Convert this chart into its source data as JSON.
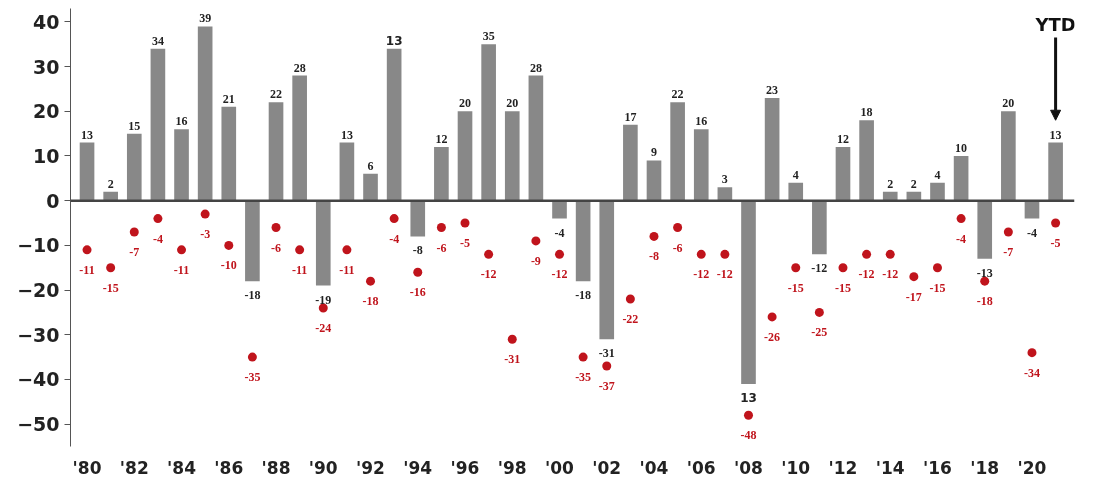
{
  "chart_data": {
    "type": "bar",
    "x": [
      1980,
      1981,
      1982,
      1983,
      1984,
      1985,
      1986,
      1987,
      1988,
      1989,
      1990,
      1991,
      1992,
      1993,
      1994,
      1995,
      1996,
      1997,
      1998,
      1999,
      2000,
      2001,
      2002,
      2003,
      2004,
      2005,
      2006,
      2007,
      2008,
      2009,
      2010,
      2011,
      2012,
      2013,
      2014,
      2015,
      2016,
      2017,
      2018,
      2019,
      2020,
      2021
    ],
    "series": [
      {
        "color": "#888888",
        "values": [
          13,
          2,
          15,
          34,
          16,
          39,
          21,
          -18,
          22,
          28,
          -19,
          13,
          6,
          34,
          -8,
          12,
          20,
          35,
          20,
          28,
          -4,
          -18,
          -31,
          17,
          9,
          22,
          16,
          3,
          -41,
          23,
          4,
          -12,
          12,
          18,
          2,
          2,
          4,
          10,
          -13,
          20,
          -4,
          13
        ],
        "value_labels": [
          "13",
          "2",
          "15",
          "34",
          "16",
          "39",
          "21",
          "-18",
          "22",
          "28",
          "-19",
          "13",
          "6",
          null,
          "-8",
          "12",
          "20",
          "35",
          "20",
          "28",
          "-4",
          "-18",
          "-31",
          "17",
          "9",
          "22",
          "16",
          "3",
          null,
          "23",
          "4",
          "-12",
          "12",
          "18",
          "2",
          "2",
          "4",
          "10",
          "-13",
          "20",
          "-4",
          "13"
        ]
      },
      {
        "type": "scatter",
        "color": "#c0141c",
        "marker": "circle",
        "data_labels": true,
        "values": [
          -11,
          -15,
          -7,
          -4,
          -11,
          -3,
          -10,
          -35,
          -6,
          -11,
          -24,
          -11,
          -18,
          -4,
          -16,
          -6,
          -5,
          -12,
          -31,
          -9,
          -12,
          -35,
          -37,
          -22,
          -8,
          -6,
          -12,
          -12,
          -48,
          -26,
          -15,
          -25,
          -15,
          -12,
          -12,
          -17,
          -15,
          -4,
          -18,
          -7,
          -34,
          -5
        ]
      }
    ],
    "xlim": [
      1979.3,
      2021.8
    ],
    "xticks": [
      {
        "value": 1980,
        "label": "'80"
      },
      {
        "value": 1982,
        "label": "'82"
      },
      {
        "value": 1984,
        "label": "'84"
      },
      {
        "value": 1986,
        "label": "'86"
      },
      {
        "value": 1988,
        "label": "'88"
      },
      {
        "value": 1990,
        "label": "'90"
      },
      {
        "value": 1992,
        "label": "'92"
      },
      {
        "value": 1994,
        "label": "'94"
      },
      {
        "value": 1996,
        "label": "'96"
      },
      {
        "value": 1998,
        "label": "'98"
      },
      {
        "value": 2000,
        "label": "'00"
      },
      {
        "value": 2002,
        "label": "'02"
      },
      {
        "value": 2004,
        "label": "'04"
      },
      {
        "value": 2006,
        "label": "'06"
      },
      {
        "value": 2008,
        "label": "'08"
      },
      {
        "value": 2010,
        "label": "'10"
      },
      {
        "value": 2012,
        "label": "'12"
      },
      {
        "value": 2014,
        "label": "'14"
      },
      {
        "value": 2016,
        "label": "'16"
      },
      {
        "value": 2018,
        "label": "'18"
      },
      {
        "value": 2020,
        "label": "'20"
      }
    ],
    "ylim": [
      -55,
      43
    ],
    "yticks": [
      -50,
      -40,
      -30,
      -20,
      -10,
      0,
      10,
      20,
      30,
      40
    ],
    "ref_lines": [
      {
        "axis": "y",
        "value": 0,
        "color": "#444444"
      }
    ],
    "annotations": [
      "YTD",
      {
        "text": "13",
        "x": 1993,
        "y": 34
      },
      {
        "text": "13",
        "x": 2008,
        "y": -41
      }
    ],
    "grid": false
  }
}
